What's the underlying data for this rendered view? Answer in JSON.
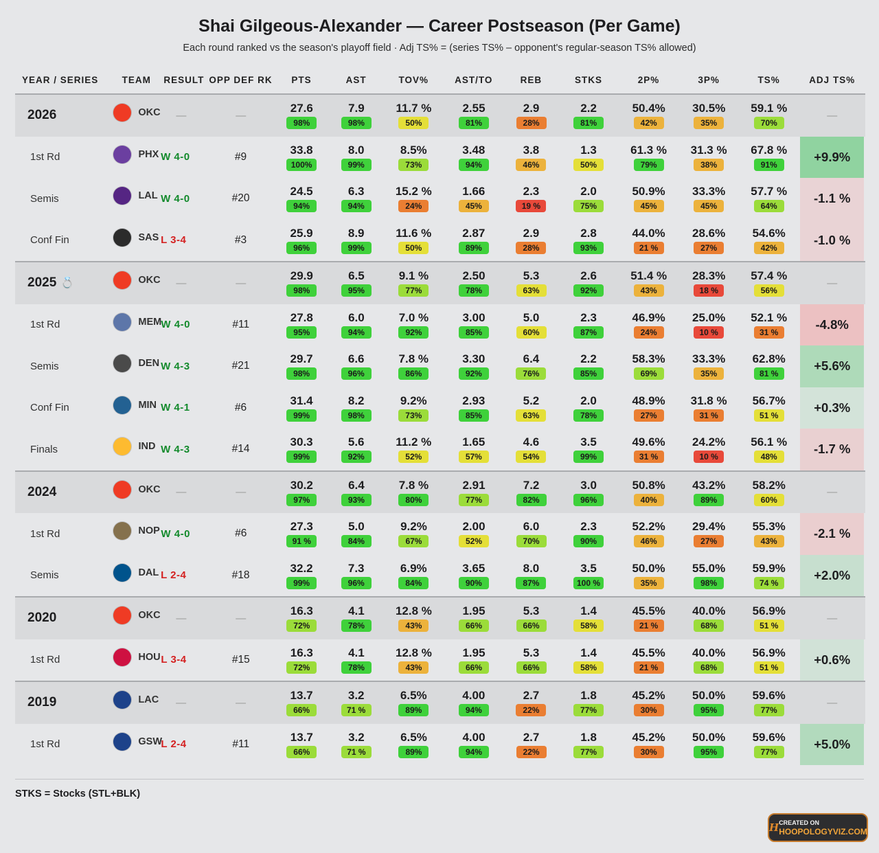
{
  "title": "Shai Gilgeous-Alexander — Career Postseason (Per Game)",
  "subtitle": "Each round ranked vs the season's playoff field · Adj TS% = (series TS% – opponent's regular-season TS% allowed)",
  "footnote": "STKS = Stocks (STL+BLK)",
  "badge": {
    "line1": "CREATED ON",
    "line2": "HOOPOLOGYVIZ.COM"
  },
  "colors": {
    "win": "#138a2c",
    "loss": "#d42222",
    "adj_positive": "#9ed4a9",
    "adj_negative": "#f2c2c2"
  },
  "chart_data": {
    "type": "table",
    "columns": [
      "YEAR / SERIES",
      "TEAM",
      "RESULT",
      "OPP DEF RK",
      "PTS",
      "AST",
      "TOV%",
      "AST/TO",
      "REB",
      "STKS",
      "2P%",
      "3P%",
      "TS%",
      "ADJ TS%"
    ],
    "stat_keys": [
      "pts",
      "ast",
      "tov",
      "astto",
      "reb",
      "stks",
      "p2",
      "p3",
      "ts"
    ],
    "rows": [
      {
        "kind": "season",
        "label": "2026",
        "team": "OKC",
        "result": "—",
        "opp": "—",
        "adj": "—",
        "pts": [
          "27.6",
          "98%"
        ],
        "ast": [
          "7.9",
          "98%"
        ],
        "tov": [
          "11.7 %",
          "50%"
        ],
        "astto": [
          "2.55",
          "81%"
        ],
        "reb": [
          "2.9",
          "28%"
        ],
        "stks": [
          "2.2",
          "81%"
        ],
        "p2": [
          "50.4%",
          "42%"
        ],
        "p3": [
          "30.5%",
          "35%"
        ],
        "ts": [
          "59.1 %",
          "70%"
        ]
      },
      {
        "kind": "series",
        "label": "1st Rd",
        "team": "PHX",
        "result": "W 4-0",
        "opp": "#9",
        "adj": "+9.9%",
        "pts": [
          "33.8",
          "100%"
        ],
        "ast": [
          "8.0",
          "99%"
        ],
        "tov": [
          "8.5%",
          "73%"
        ],
        "astto": [
          "3.48",
          "94%"
        ],
        "reb": [
          "3.8",
          "46%"
        ],
        "stks": [
          "1.3",
          "50%"
        ],
        "p2": [
          "61.3 %",
          "79%"
        ],
        "p3": [
          "31.3 %",
          "38%"
        ],
        "ts": [
          "67.8 %",
          "91%"
        ]
      },
      {
        "kind": "series",
        "label": "Semis",
        "team": "LAL",
        "result": "W 4-0",
        "opp": "#20",
        "adj": "-1.1 %",
        "pts": [
          "24.5",
          "94%"
        ],
        "ast": [
          "6.3",
          "94%"
        ],
        "tov": [
          "15.2 %",
          "24%"
        ],
        "astto": [
          "1.66",
          "45%"
        ],
        "reb": [
          "2.3",
          "19 %"
        ],
        "stks": [
          "2.0",
          "75%"
        ],
        "p2": [
          "50.9%",
          "45%"
        ],
        "p3": [
          "33.3%",
          "45%"
        ],
        "ts": [
          "57.7 %",
          "64%"
        ]
      },
      {
        "kind": "series",
        "label": "Conf Fin",
        "team": "SAS",
        "result": "L 3-4",
        "opp": "#3",
        "adj": "-1.0 %",
        "pts": [
          "25.9",
          "96%"
        ],
        "ast": [
          "8.9",
          "99%"
        ],
        "tov": [
          "11.6 %",
          "50%"
        ],
        "astto": [
          "2.87",
          "89%"
        ],
        "reb": [
          "2.9",
          "28%"
        ],
        "stks": [
          "2.8",
          "93%"
        ],
        "p2": [
          "44.0%",
          "21 %"
        ],
        "p3": [
          "28.6%",
          "27%"
        ],
        "ts": [
          "54.6%",
          "42%"
        ]
      },
      {
        "kind": "season",
        "label": "2025",
        "ring": true,
        "team": "OKC",
        "result": "—",
        "opp": "—",
        "adj": "—",
        "pts": [
          "29.9",
          "98%"
        ],
        "ast": [
          "6.5",
          "95%"
        ],
        "tov": [
          "9.1 %",
          "77%"
        ],
        "astto": [
          "2.50",
          "78%"
        ],
        "reb": [
          "5.3",
          "63%"
        ],
        "stks": [
          "2.6",
          "92%"
        ],
        "p2": [
          "51.4 %",
          "43%"
        ],
        "p3": [
          "28.3%",
          "18 %"
        ],
        "ts": [
          "57.4 %",
          "56%"
        ]
      },
      {
        "kind": "series",
        "label": "1st Rd",
        "team": "MEM",
        "result": "W 4-0",
        "opp": "#11",
        "adj": "-4.8%",
        "pts": [
          "27.8",
          "95%"
        ],
        "ast": [
          "6.0",
          "94%"
        ],
        "tov": [
          "7.0 %",
          "92%"
        ],
        "astto": [
          "3.00",
          "85%"
        ],
        "reb": [
          "5.0",
          "60%"
        ],
        "stks": [
          "2.3",
          "87%"
        ],
        "p2": [
          "46.9%",
          "24%"
        ],
        "p3": [
          "25.0%",
          "10 %"
        ],
        "ts": [
          "52.1 %",
          "31 %"
        ]
      },
      {
        "kind": "series",
        "label": "Semis",
        "team": "DEN",
        "result": "W 4-3",
        "opp": "#21",
        "adj": "+5.6%",
        "pts": [
          "29.7",
          "98%"
        ],
        "ast": [
          "6.6",
          "96%"
        ],
        "tov": [
          "7.8 %",
          "86%"
        ],
        "astto": [
          "3.30",
          "92%"
        ],
        "reb": [
          "6.4",
          "76%"
        ],
        "stks": [
          "2.2",
          "85%"
        ],
        "p2": [
          "58.3%",
          "69%"
        ],
        "p3": [
          "33.3%",
          "35%"
        ],
        "ts": [
          "62.8%",
          "81 %"
        ]
      },
      {
        "kind": "series",
        "label": "Conf Fin",
        "team": "MIN",
        "result": "W 4-1",
        "opp": "#6",
        "adj": "+0.3%",
        "pts": [
          "31.4",
          "99%"
        ],
        "ast": [
          "8.2",
          "98%"
        ],
        "tov": [
          "9.2%",
          "73%"
        ],
        "astto": [
          "2.93",
          "85%"
        ],
        "reb": [
          "5.2",
          "63%"
        ],
        "stks": [
          "2.0",
          "78%"
        ],
        "p2": [
          "48.9%",
          "27%"
        ],
        "p3": [
          "31.8 %",
          "31 %"
        ],
        "ts": [
          "56.7%",
          "51 %"
        ]
      },
      {
        "kind": "series",
        "label": "Finals",
        "team": "IND",
        "result": "W 4-3",
        "opp": "#14",
        "adj": "-1.7 %",
        "pts": [
          "30.3",
          "99%"
        ],
        "ast": [
          "5.6",
          "92%"
        ],
        "tov": [
          "11.2 %",
          "52%"
        ],
        "astto": [
          "1.65",
          "57%"
        ],
        "reb": [
          "4.6",
          "54%"
        ],
        "stks": [
          "3.5",
          "99%"
        ],
        "p2": [
          "49.6%",
          "31 %"
        ],
        "p3": [
          "24.2%",
          "10 %"
        ],
        "ts": [
          "56.1 %",
          "48%"
        ]
      },
      {
        "kind": "season",
        "label": "2024",
        "team": "OKC",
        "result": "—",
        "opp": "—",
        "adj": "—",
        "pts": [
          "30.2",
          "97%"
        ],
        "ast": [
          "6.4",
          "93%"
        ],
        "tov": [
          "7.8 %",
          "80%"
        ],
        "astto": [
          "2.91",
          "77%"
        ],
        "reb": [
          "7.2",
          "82%"
        ],
        "stks": [
          "3.0",
          "96%"
        ],
        "p2": [
          "50.8%",
          "40%"
        ],
        "p3": [
          "43.2%",
          "89%"
        ],
        "ts": [
          "58.2%",
          "60%"
        ]
      },
      {
        "kind": "series",
        "label": "1st Rd",
        "team": "NOP",
        "result": "W 4-0",
        "opp": "#6",
        "adj": "-2.1 %",
        "pts": [
          "27.3",
          "91 %"
        ],
        "ast": [
          "5.0",
          "84%"
        ],
        "tov": [
          "9.2%",
          "67%"
        ],
        "astto": [
          "2.00",
          "52%"
        ],
        "reb": [
          "6.0",
          "70%"
        ],
        "stks": [
          "2.3",
          "90%"
        ],
        "p2": [
          "52.2%",
          "46%"
        ],
        "p3": [
          "29.4%",
          "27%"
        ],
        "ts": [
          "55.3%",
          "43%"
        ]
      },
      {
        "kind": "series",
        "label": "Semis",
        "team": "DAL",
        "result": "L 2-4",
        "opp": "#18",
        "adj": "+2.0%",
        "pts": [
          "32.2",
          "99%"
        ],
        "ast": [
          "7.3",
          "96%"
        ],
        "tov": [
          "6.9%",
          "84%"
        ],
        "astto": [
          "3.65",
          "90%"
        ],
        "reb": [
          "8.0",
          "87%"
        ],
        "stks": [
          "3.5",
          "100 %"
        ],
        "p2": [
          "50.0%",
          "35%"
        ],
        "p3": [
          "55.0%",
          "98%"
        ],
        "ts": [
          "59.9%",
          "74 %"
        ]
      },
      {
        "kind": "season",
        "label": "2020",
        "team": "OKC",
        "result": "—",
        "opp": "—",
        "adj": "—",
        "pts": [
          "16.3",
          "72%"
        ],
        "ast": [
          "4.1",
          "78%"
        ],
        "tov": [
          "12.8 %",
          "43%"
        ],
        "astto": [
          "1.95",
          "66%"
        ],
        "reb": [
          "5.3",
          "66%"
        ],
        "stks": [
          "1.4",
          "58%"
        ],
        "p2": [
          "45.5%",
          "21 %"
        ],
        "p3": [
          "40.0%",
          "68%"
        ],
        "ts": [
          "56.9%",
          "51 %"
        ]
      },
      {
        "kind": "series",
        "label": "1st Rd",
        "team": "HOU",
        "result": "L 3-4",
        "opp": "#15",
        "adj": "+0.6%",
        "pts": [
          "16.3",
          "72%"
        ],
        "ast": [
          "4.1",
          "78%"
        ],
        "tov": [
          "12.8 %",
          "43%"
        ],
        "astto": [
          "1.95",
          "66%"
        ],
        "reb": [
          "5.3",
          "66%"
        ],
        "stks": [
          "1.4",
          "58%"
        ],
        "p2": [
          "45.5%",
          "21 %"
        ],
        "p3": [
          "40.0%",
          "68%"
        ],
        "ts": [
          "56.9%",
          "51 %"
        ]
      },
      {
        "kind": "season",
        "label": "2019",
        "team": "LAC",
        "result": "—",
        "opp": "—",
        "adj": "—",
        "pts": [
          "13.7",
          "66%"
        ],
        "ast": [
          "3.2",
          "71 %"
        ],
        "tov": [
          "6.5%",
          "89%"
        ],
        "astto": [
          "4.00",
          "94%"
        ],
        "reb": [
          "2.7",
          "22%"
        ],
        "stks": [
          "1.8",
          "77%"
        ],
        "p2": [
          "45.2%",
          "30%"
        ],
        "p3": [
          "50.0%",
          "95%"
        ],
        "ts": [
          "59.6%",
          "77%"
        ]
      },
      {
        "kind": "series",
        "label": "1st Rd",
        "team": "GSW",
        "result": "L 2-4",
        "opp": "#11",
        "adj": "+5.0%",
        "pts": [
          "13.7",
          "66%"
        ],
        "ast": [
          "3.2",
          "71 %"
        ],
        "tov": [
          "6.5%",
          "89%"
        ],
        "astto": [
          "4.00",
          "94%"
        ],
        "reb": [
          "2.7",
          "22%"
        ],
        "stks": [
          "1.8",
          "77%"
        ],
        "p2": [
          "45.2%",
          "30%"
        ],
        "p3": [
          "50.0%",
          "95%"
        ],
        "ts": [
          "59.6%",
          "77%"
        ]
      }
    ]
  },
  "teams": {
    "OKC": {
      "color": "#ef3b24"
    },
    "PHX": {
      "color": "#6b3fa0"
    },
    "LAL": {
      "color": "#552583"
    },
    "SAS": {
      "color": "#2b2b2b"
    },
    "MEM": {
      "color": "#5d76a9"
    },
    "DEN": {
      "color": "#4a4a4a"
    },
    "MIN": {
      "color": "#236192"
    },
    "IND": {
      "color": "#fdbb30"
    },
    "NOP": {
      "color": "#85714d"
    },
    "DAL": {
      "color": "#00538c"
    },
    "HOU": {
      "color": "#ce1141"
    },
    "LAC": {
      "color": "#1d428a"
    },
    "GSW": {
      "color": "#1d428a"
    }
  }
}
